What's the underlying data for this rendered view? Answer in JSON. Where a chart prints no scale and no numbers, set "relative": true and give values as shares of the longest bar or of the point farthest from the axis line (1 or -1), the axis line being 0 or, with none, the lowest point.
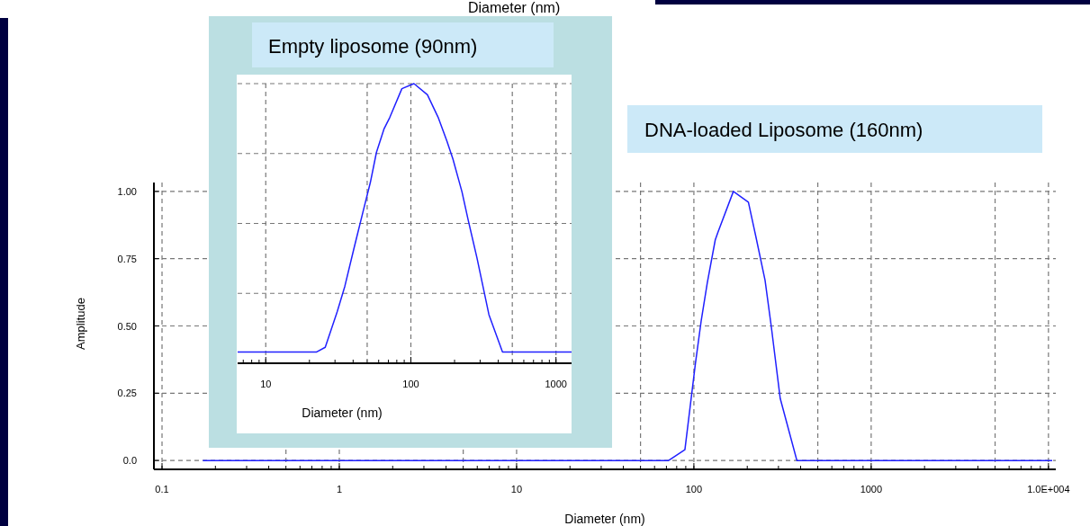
{
  "chart_data": [
    {
      "type": "line",
      "xlabel": "Diameter (nm)",
      "ylabel": "Amplitude",
      "log": "x",
      "grid": true,
      "xlim": [
        0.09,
        11000
      ],
      "ylim": [
        -0.033,
        1.033
      ],
      "xticks": [
        0.1,
        1,
        10,
        100,
        1000,
        {
          "value": 10000,
          "label": "1.0E+004"
        }
      ],
      "yticks": [
        {
          "value": 0,
          "label": "0.0"
        },
        0.25,
        {
          "value": 0.5,
          "label": "0.50"
        },
        0.75,
        {
          "value": 1,
          "label": "1.00"
        }
      ],
      "annotations": [
        "DNA-loaded Liposome (160nm)",
        "Diameter (nm)"
      ],
      "series": [
        {
          "color": "#2020ff",
          "x": [
            0.17,
            72,
            89,
            102,
            110,
            119,
            132,
            137,
            167,
            203,
            224,
            252,
            273,
            307,
            381,
            10500
          ],
          "values": [
            0,
            0,
            0.04,
            0.36,
            0.52,
            0.66,
            0.82,
            0.85,
            1.0,
            0.96,
            0.83,
            0.67,
            0.5,
            0.23,
            0,
            0
          ]
        }
      ]
    },
    {
      "type": "line",
      "title": "Empty liposome (90nm)",
      "xlabel": "Diameter (nm)",
      "log": "x",
      "grid": true,
      "relative": true,
      "tick_labels": "x",
      "xlim": [
        6.4,
        1280
      ],
      "xticks": [
        10,
        100,
        1000
      ],
      "series": [
        {
          "color": "#2020ff",
          "x": [
            6.4,
            22.3,
            25.7,
            31.1,
            35.1,
            40.5,
            46.7,
            52.6,
            57.9,
            65.2,
            71.7,
            86.7,
            105,
            130,
            154,
            177,
            195,
            225,
            247,
            285,
            345,
            428,
            1280
          ],
          "values": [
            0.04,
            0.04,
            0.057,
            0.185,
            0.276,
            0.41,
            0.54,
            0.647,
            0.754,
            0.837,
            0.88,
            0.982,
            1.0,
            0.96,
            0.88,
            0.795,
            0.73,
            0.613,
            0.517,
            0.378,
            0.174,
            0.04,
            0.04
          ]
        }
      ]
    }
  ]
}
